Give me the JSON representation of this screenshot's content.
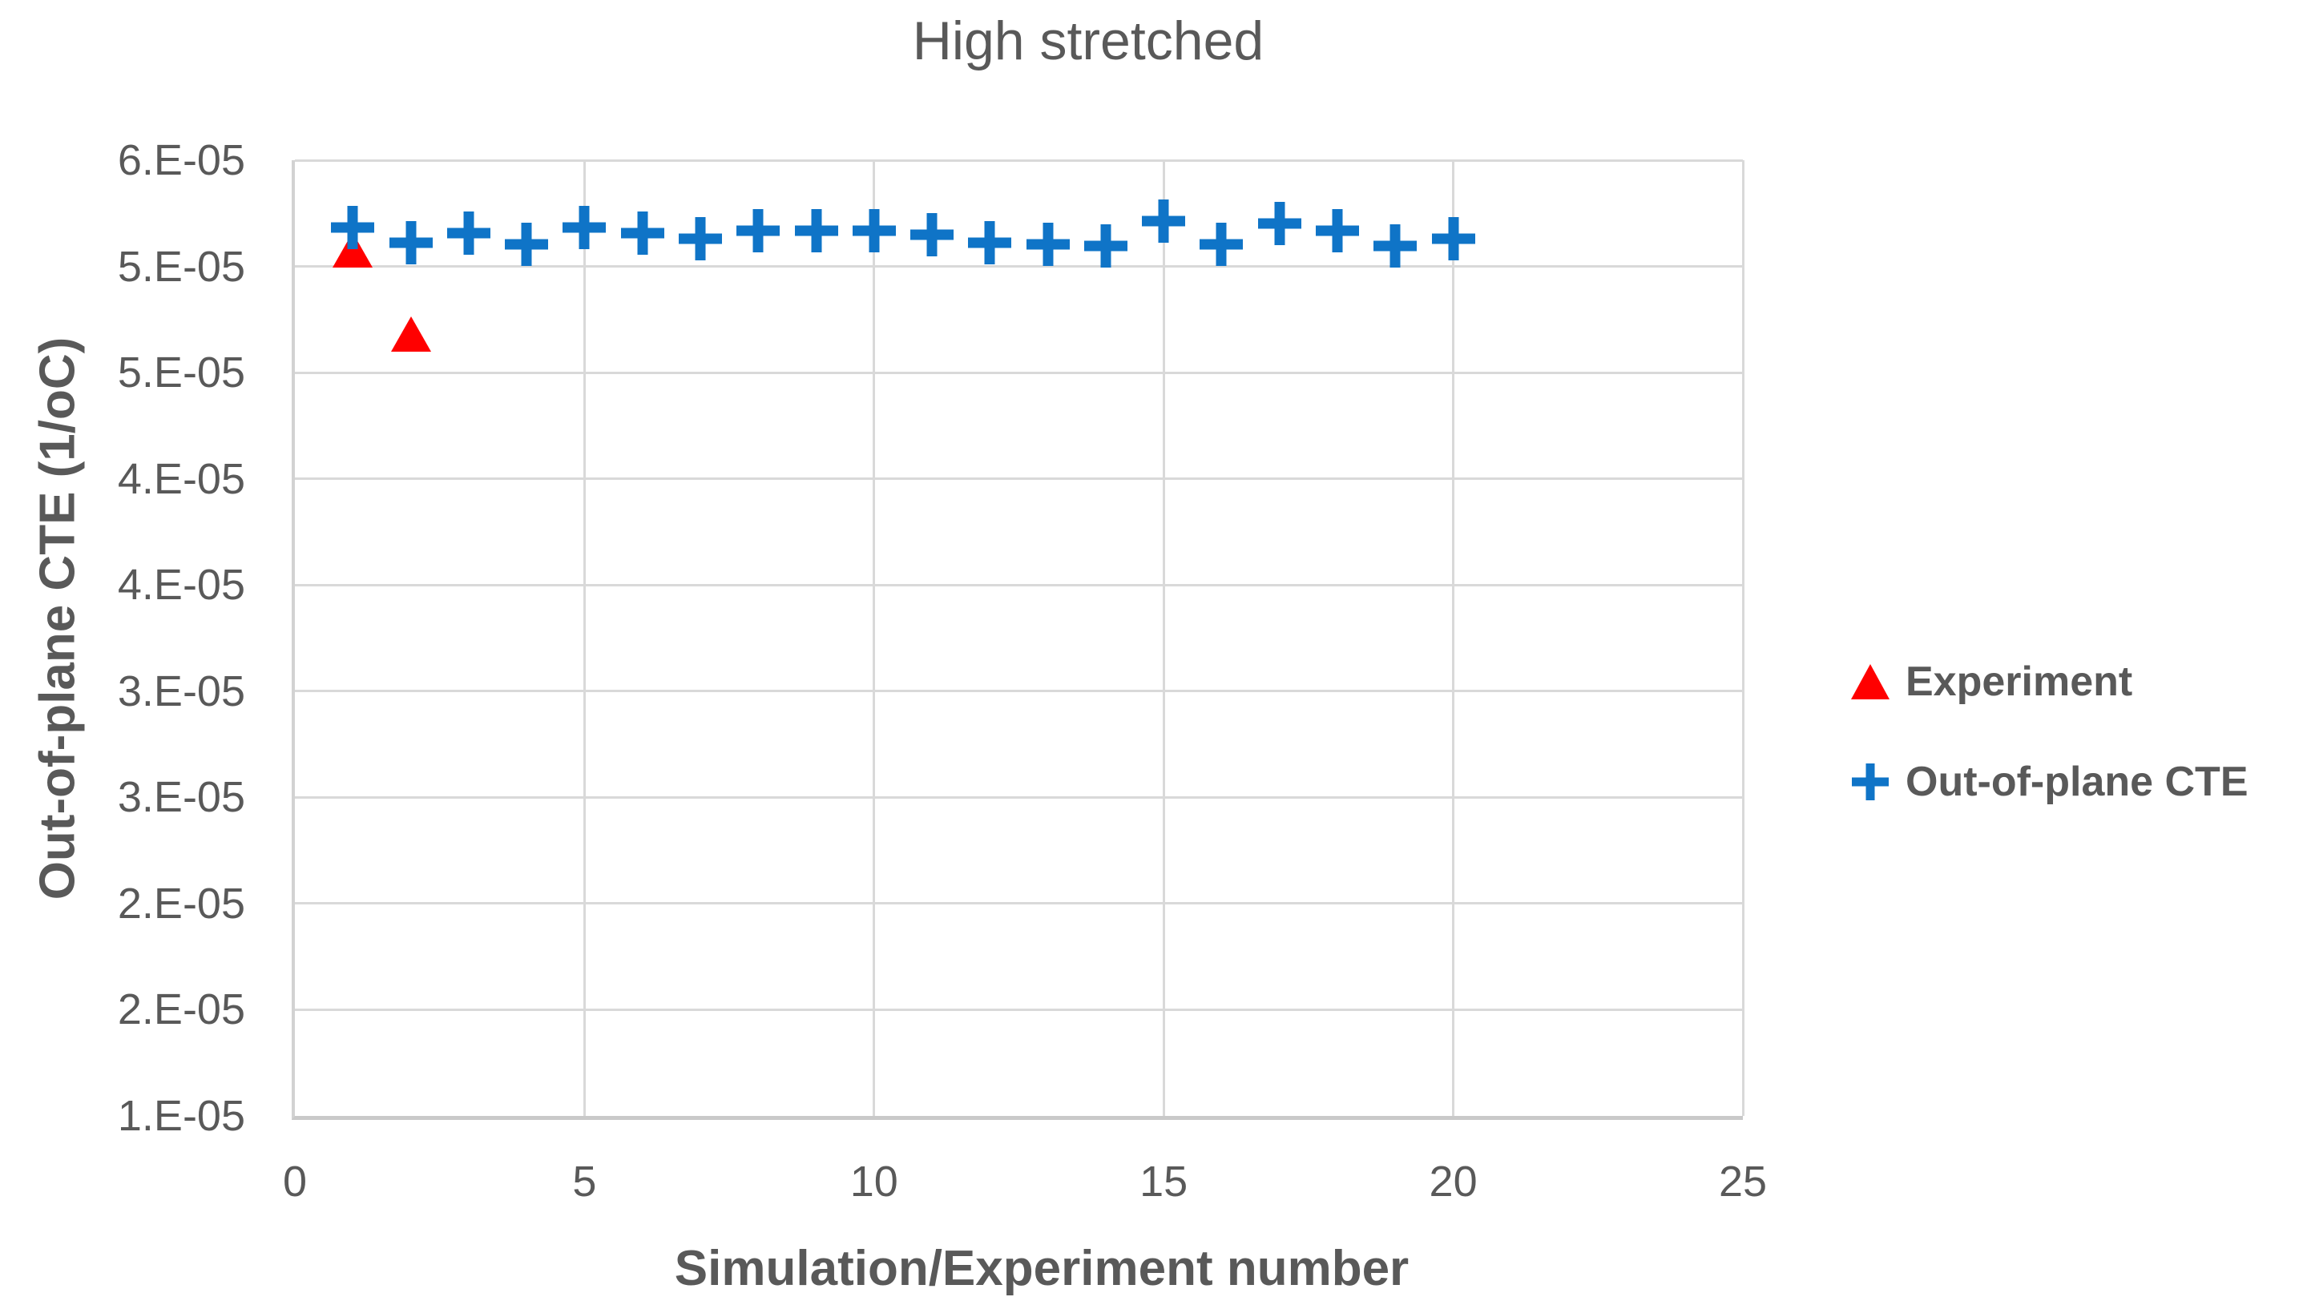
{
  "chart_data": {
    "type": "scatter",
    "title": "High stretched",
    "xlabel": "Simulation/Experiment number",
    "ylabel": "Out-of-plane CTE (1/oC)",
    "xlim": [
      0,
      25
    ],
    "ylim": [
      1e-05,
      6e-05
    ],
    "grid": true,
    "legend_position": "right-center",
    "x_axis": {
      "ticks": [
        0,
        5,
        10,
        15,
        20,
        25
      ]
    },
    "y_axis": {
      "tick_labels": [
        "6.E-05",
        "5.E-05",
        "5.E-05",
        "4.E-05",
        "4.E-05",
        "3.E-05",
        "3.E-05",
        "2.E-05",
        "2.E-05",
        "1.E-05"
      ]
    },
    "series": [
      {
        "name": "Experiment",
        "marker": "triangle",
        "color": "#FF0000",
        "x": [
          1,
          2
        ],
        "y": [
          5.53e-05,
          5.09e-05
        ]
      },
      {
        "name": "Out-of-plane CTE",
        "marker": "plus",
        "color": "#0F74C7",
        "x": [
          1,
          2,
          3,
          4,
          5,
          6,
          7,
          8,
          9,
          10,
          11,
          12,
          13,
          14,
          15,
          16,
          17,
          18,
          19,
          20
        ],
        "y": [
          5.65e-05,
          5.57e-05,
          5.62e-05,
          5.56e-05,
          5.65e-05,
          5.62e-05,
          5.59e-05,
          5.63e-05,
          5.63e-05,
          5.63e-05,
          5.61e-05,
          5.57e-05,
          5.56e-05,
          5.55e-05,
          5.68e-05,
          5.56e-05,
          5.67e-05,
          5.63e-05,
          5.55e-05,
          5.59e-05
        ]
      }
    ],
    "colors": {
      "text": "#595959",
      "gridline": "#D9D9D9",
      "axis_line": "#C9C9C9",
      "experiment": "#FF0000",
      "out_of_plane_cte": "#0F74C7"
    }
  }
}
